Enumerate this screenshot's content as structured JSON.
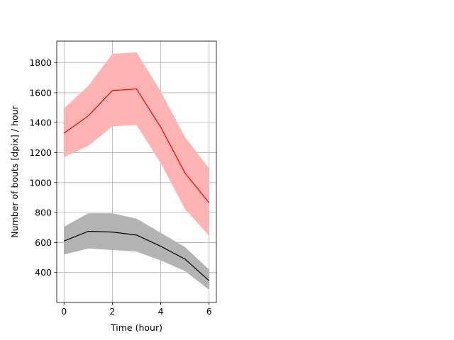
{
  "chart_data": {
    "type": "line",
    "title": "",
    "xlabel": "Time (hour)",
    "ylabel": "Number of bouts [dpix]  / hour",
    "xlim": [
      -0.3,
      6.3
    ],
    "ylim": [
      200,
      1945
    ],
    "xticks": [
      0,
      2,
      4,
      6
    ],
    "yticks": [
      400,
      600,
      800,
      1000,
      1200,
      1400,
      1600,
      1800
    ],
    "grid": true,
    "x": [
      0,
      1,
      2,
      3,
      4,
      5,
      6
    ],
    "series": [
      {
        "color": "#ff0000",
        "band_color": "#ffb3b3",
        "values": [
          1330,
          1445,
          1615,
          1625,
          1370,
          1065,
          865
        ],
        "upper": [
          1495,
          1645,
          1860,
          1870,
          1610,
          1305,
          1095
        ],
        "lower": [
          1170,
          1245,
          1375,
          1385,
          1130,
          825,
          645
        ]
      },
      {
        "color": "#000000",
        "band_color": "#b3b3b3",
        "values": [
          610,
          675,
          670,
          650,
          575,
          490,
          345
        ],
        "upper": [
          705,
          795,
          795,
          760,
          665,
          570,
          420
        ],
        "lower": [
          520,
          560,
          550,
          540,
          480,
          410,
          285
        ]
      }
    ]
  }
}
